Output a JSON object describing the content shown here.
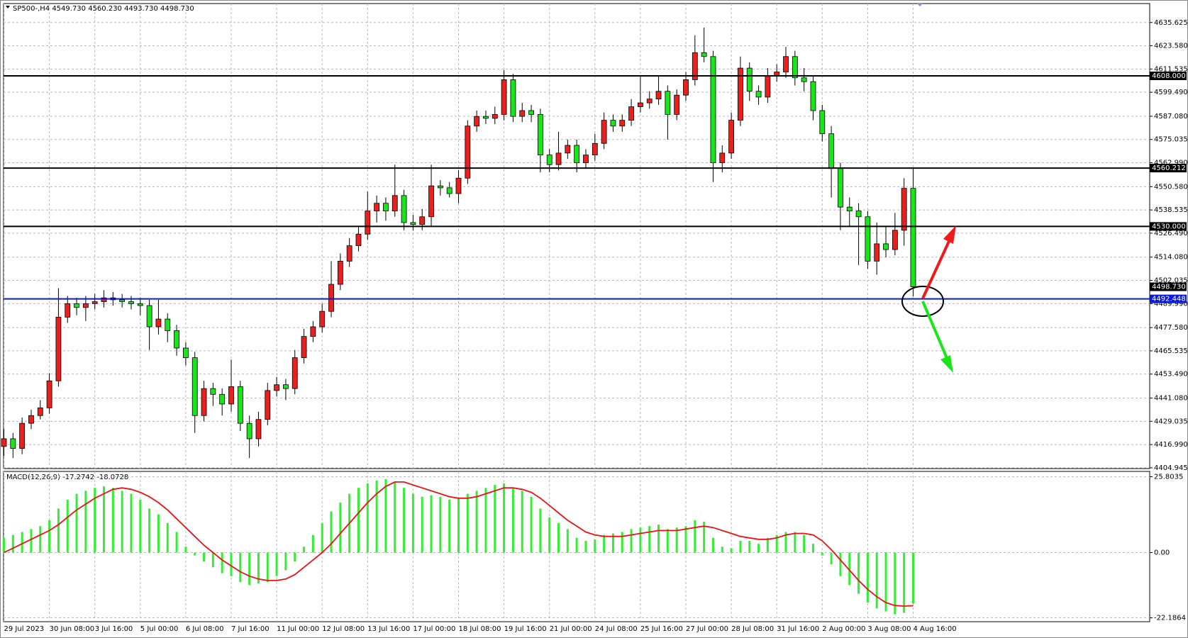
{
  "chart_data": [
    {
      "type": "candlestick",
      "title": "SP500-,H4 4549.730 4560.230 4493.730 4498.730",
      "up_color": "#e8201e",
      "down_color": "#19e619",
      "grid": true,
      "ylim": [
        4404.55,
        4645.45
      ],
      "yticks": [
        4635.625,
        {
          "value": 4623.58,
          "label": "4623.580"
        },
        4611.535,
        {
          "value": 4599.49,
          "label": "4599.490"
        },
        {
          "value": 4587.08,
          "label": "4587.080"
        },
        4575.035,
        {
          "value": 4562.99,
          "label": "4562.990"
        },
        {
          "value": 4550.58,
          "label": "4550.580"
        },
        4538.535,
        {
          "value": 4526.49,
          "label": "4526.490"
        },
        {
          "value": 4514.08,
          "label": "4514.080"
        },
        4502.035,
        {
          "value": 4489.99,
          "label": "4489.990"
        },
        {
          "value": 4477.58,
          "label": "4477.580"
        },
        4465.535,
        {
          "value": 4453.49,
          "label": "4453.490"
        },
        {
          "value": 4441.08,
          "label": "4441.080"
        },
        4429.035,
        {
          "value": 4416.99,
          "label": "4416.990"
        },
        4404.945
      ],
      "hlines": [
        {
          "value": 4608,
          "label": "4608.000",
          "color": "#000000"
        },
        {
          "value": 4560.212,
          "color": "#000000"
        },
        {
          "value": 4530,
          "label": "4530.000",
          "color": "#000000"
        },
        {
          "value": 4492.448,
          "color": "#0a1ad8"
        }
      ],
      "price_marker": {
        "value": 4498.73,
        "label": "4498.730"
      },
      "categories": [
        "29 Jul 2023",
        null,
        null,
        null,
        null,
        "30 Jun 08:00",
        null,
        null,
        null,
        null,
        "3 Jul 16:00",
        null,
        null,
        null,
        null,
        "5 Jul 00:00",
        null,
        null,
        null,
        null,
        "6 Jul 08:00",
        null,
        null,
        null,
        null,
        "7 Jul 16:00",
        null,
        null,
        null,
        null,
        "11 Jul 00:00",
        null,
        null,
        null,
        null,
        "12 Jul 08:00",
        null,
        null,
        null,
        null,
        "13 Jul 16:00",
        null,
        null,
        null,
        null,
        "17 Jul 00:00",
        null,
        null,
        null,
        null,
        "18 Jul 08:00",
        null,
        null,
        null,
        null,
        "19 Jul 16:00",
        null,
        null,
        null,
        null,
        "21 Jul 00:00",
        null,
        null,
        null,
        null,
        "24 Jul 08:00",
        null,
        null,
        null,
        null,
        "25 Jul 16:00",
        null,
        null,
        null,
        null,
        "27 Jul 00:00",
        null,
        null,
        null,
        null,
        "28 Jul 08:00",
        null,
        null,
        null,
        null,
        "31 Jul 16:00",
        null,
        null,
        null,
        null,
        "2 Aug 00:00",
        null,
        null,
        null,
        null,
        "3 Aug 08:00",
        null,
        null,
        null,
        null,
        "4 Aug 16:00"
      ],
      "ohlc": [
        [
          4416,
          4425,
          4411,
          4420
        ],
        [
          4420,
          4423,
          4410,
          4415
        ],
        [
          4415,
          4431,
          4412,
          4428
        ],
        [
          4428,
          4435,
          4425,
          4432
        ],
        [
          4432,
          4440,
          4430,
          4436
        ],
        [
          4436,
          4454,
          4433,
          4450
        ],
        [
          4450,
          4498,
          4447,
          4483
        ],
        [
          4483,
          4494,
          4480,
          4490
        ],
        [
          4490,
          4493,
          4484,
          4488
        ],
        [
          4488,
          4494,
          4481,
          4490
        ],
        [
          4490,
          4495,
          4487,
          4491
        ],
        [
          4491,
          4497,
          4488,
          4493
        ],
        [
          4493,
          4496,
          4489,
          4492
        ],
        [
          4492,
          4495,
          4488,
          4491
        ],
        [
          4491,
          4494,
          4487,
          4490
        ],
        [
          4490,
          4493,
          4484,
          4489
        ],
        [
          4489,
          4492,
          4466,
          4478
        ],
        [
          4478,
          4492,
          4474,
          4482
        ],
        [
          4482,
          4485,
          4470,
          4476
        ],
        [
          4476,
          4479,
          4463,
          4467
        ],
        [
          4467,
          4470,
          4458,
          4462
        ],
        [
          4462,
          4465,
          4423,
          4432
        ],
        [
          4432,
          4450,
          4429,
          4446
        ],
        [
          4446,
          4449,
          4437,
          4443
        ],
        [
          4443,
          4446,
          4432,
          4438
        ],
        [
          4438,
          4461,
          4434,
          4447
        ],
        [
          4447,
          4450,
          4424,
          4428
        ],
        [
          4428,
          4432,
          4410,
          4420
        ],
        [
          4420,
          4434,
          4416,
          4430
        ],
        [
          4430,
          4449,
          4427,
          4445
        ],
        [
          4445,
          4452,
          4442,
          4448
        ],
        [
          4448,
          4451,
          4440,
          4446
        ],
        [
          4446,
          4466,
          4443,
          4462
        ],
        [
          4462,
          4477,
          4459,
          4473
        ],
        [
          4473,
          4481,
          4470,
          4478
        ],
        [
          4478,
          4490,
          4475,
          4486
        ],
        [
          4486,
          4512,
          4483,
          4500
        ],
        [
          4500,
          4516,
          4497,
          4512
        ],
        [
          4512,
          4524,
          4509,
          4520
        ],
        [
          4520,
          4530,
          4517,
          4526
        ],
        [
          4526,
          4548,
          4523,
          4538
        ],
        [
          4538,
          4546,
          4532,
          4542
        ],
        [
          4542,
          4545,
          4533,
          4538
        ],
        [
          4538,
          4562,
          4535,
          4546
        ],
        [
          4546,
          4549,
          4528,
          4532
        ],
        [
          4532,
          4536,
          4528,
          4531
        ],
        [
          4531,
          4539,
          4528,
          4535
        ],
        [
          4535,
          4562,
          4530,
          4551
        ],
        [
          4551,
          4554,
          4546,
          4550
        ],
        [
          4550,
          4553,
          4545,
          4547
        ],
        [
          4547,
          4559,
          4542,
          4555
        ],
        [
          4555,
          4585,
          4552,
          4582
        ],
        [
          4582,
          4590,
          4579,
          4587
        ],
        [
          4587,
          4590,
          4583,
          4586
        ],
        [
          4586,
          4592,
          4583,
          4588
        ],
        [
          4588,
          4611,
          4585,
          4606
        ],
        [
          4606,
          4609,
          4584,
          4587
        ],
        [
          4587,
          4594,
          4584,
          4590
        ],
        [
          4590,
          4593,
          4584,
          4588
        ],
        [
          4588,
          4591,
          4558,
          4567
        ],
        [
          4567,
          4570,
          4558,
          4562
        ],
        [
          4562,
          4579,
          4559,
          4568
        ],
        [
          4568,
          4575,
          4565,
          4572
        ],
        [
          4572,
          4575,
          4558,
          4563
        ],
        [
          4563,
          4570,
          4560,
          4567
        ],
        [
          4567,
          4578,
          4564,
          4573
        ],
        [
          4573,
          4589,
          4570,
          4585
        ],
        [
          4585,
          4588,
          4579,
          4582
        ],
        [
          4582,
          4588,
          4579,
          4585
        ],
        [
          4585,
          4596,
          4582,
          4592
        ],
        [
          4592,
          4608,
          4589,
          4594
        ],
        [
          4594,
          4600,
          4591,
          4596
        ],
        [
          4596,
          4608,
          4593,
          4600
        ],
        [
          4600,
          4603,
          4575,
          4588
        ],
        [
          4588,
          4601,
          4585,
          4598
        ],
        [
          4598,
          4610,
          4595,
          4606
        ],
        [
          4606,
          4629,
          4603,
          4620
        ],
        [
          4620,
          4633,
          4615,
          4618
        ],
        [
          4618,
          4621,
          4553,
          4563
        ],
        [
          4563,
          4572,
          4558,
          4568
        ],
        [
          4568,
          4589,
          4565,
          4585
        ],
        [
          4585,
          4618,
          4582,
          4612
        ],
        [
          4612,
          4615,
          4595,
          4600
        ],
        [
          4600,
          4603,
          4593,
          4597
        ],
        [
          4597,
          4612,
          4594,
          4608
        ],
        [
          4608,
          4614,
          4605,
          4610
        ],
        [
          4610,
          4623,
          4607,
          4618
        ],
        [
          4618,
          4621,
          4603,
          4607
        ],
        [
          4607,
          4612,
          4600,
          4605
        ],
        [
          4605,
          4608,
          4585,
          4590
        ],
        [
          4590,
          4593,
          4574,
          4578
        ],
        [
          4578,
          4582,
          4545,
          4560
        ],
        [
          4560,
          4563,
          4528,
          4540
        ],
        [
          4540,
          4545,
          4530,
          4538
        ],
        [
          4538,
          4542,
          4510,
          4535
        ],
        [
          4535,
          4538,
          4508,
          4512
        ],
        [
          4512,
          4532,
          4505,
          4521
        ],
        [
          4521,
          4530,
          4514,
          4518
        ],
        [
          4518,
          4537,
          4515,
          4528
        ],
        [
          4528,
          4555,
          4520,
          4549.73
        ],
        [
          4549.73,
          4560.23,
          4493.73,
          4498.73
        ]
      ]
    },
    {
      "type": "macd",
      "title": "MACD(12,26,9) -17.2742 -18.0728",
      "histogram_color": "#33ee33",
      "signal_color": "#ee1111",
      "ylim": [
        -23.5,
        27.6
      ],
      "yticks": [
        25.8035,
        {
          "value": 0,
          "label": "0.00"
        },
        -22.1864
      ],
      "histogram": [
        5,
        6,
        7,
        8,
        9,
        11,
        15,
        18,
        20,
        21,
        22,
        22.5,
        22,
        21,
        20,
        18,
        15,
        13,
        10,
        7,
        2,
        -1,
        -3,
        -5,
        -7,
        -8,
        -10,
        -11,
        -10.5,
        -10,
        -8,
        -6,
        -3,
        2,
        6,
        10,
        14,
        17,
        20,
        22,
        23.5,
        24.5,
        25,
        24,
        22,
        20,
        19,
        19.5,
        19,
        18,
        18.5,
        20,
        21,
        22,
        23,
        23.5,
        22,
        21,
        19,
        15,
        12,
        10,
        8,
        5,
        4,
        4.5,
        6,
        6.5,
        7,
        8,
        8.5,
        9,
        9.5,
        8,
        8.5,
        9,
        11,
        10.5,
        5,
        2,
        1.5,
        4,
        4,
        3,
        5,
        6,
        7,
        7,
        6,
        3,
        -1,
        -4,
        -8,
        -11,
        -14,
        -17,
        -19,
        -20,
        -21,
        -20.5,
        -17.2742
      ],
      "signal": [
        0,
        1.5,
        3,
        4.5,
        6,
        7.5,
        9.5,
        12,
        14.5,
        16.5,
        18.5,
        20,
        21.5,
        22,
        21.5,
        20.5,
        19,
        17,
        14.5,
        11.5,
        8.5,
        5.5,
        2.5,
        0,
        -2.5,
        -4.5,
        -6.5,
        -8,
        -9,
        -9.5,
        -9.5,
        -9,
        -7.5,
        -5,
        -2.5,
        0,
        3,
        6.5,
        10,
        13.5,
        17,
        20,
        22.5,
        24,
        24,
        23,
        22,
        21,
        20,
        19,
        18.5,
        18.5,
        19,
        20,
        21,
        22,
        22,
        21.5,
        20.5,
        18.5,
        16,
        13.5,
        11,
        9,
        7,
        6,
        5.5,
        5.5,
        5.5,
        6,
        6.5,
        7,
        7.5,
        7.5,
        7.5,
        8,
        8.5,
        9,
        8.5,
        7.5,
        6.5,
        5.5,
        5,
        4.5,
        4.5,
        5,
        6,
        6.5,
        6.5,
        6,
        4,
        1,
        -2.5,
        -6,
        -9.5,
        -12.5,
        -15,
        -17,
        -18,
        -18.2,
        -18.0728
      ]
    }
  ]
}
